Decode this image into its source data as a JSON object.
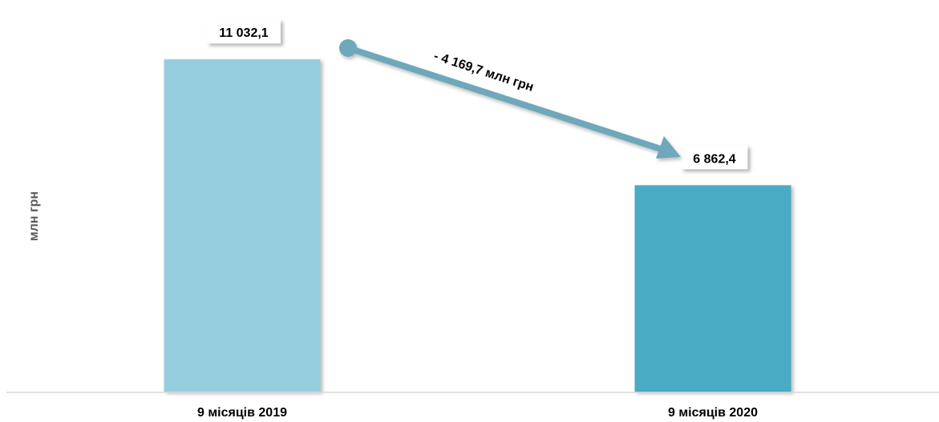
{
  "chart_data": {
    "type": "bar",
    "categories": [
      "9 місяців 2019",
      "9 місяців 2020"
    ],
    "values": [
      11032.1,
      6862.4
    ],
    "value_labels": [
      "11 032,1",
      "6 862,4"
    ],
    "bar_colors": [
      "#96cddd",
      "#4aabc4"
    ],
    "ylabel": "млн грн",
    "ylim": [
      0,
      13000
    ],
    "grid": false,
    "annotation": {
      "text": "- 4 169,7 млн грн",
      "change": -4169.7,
      "arrow_color": "#6ea8ba"
    }
  }
}
